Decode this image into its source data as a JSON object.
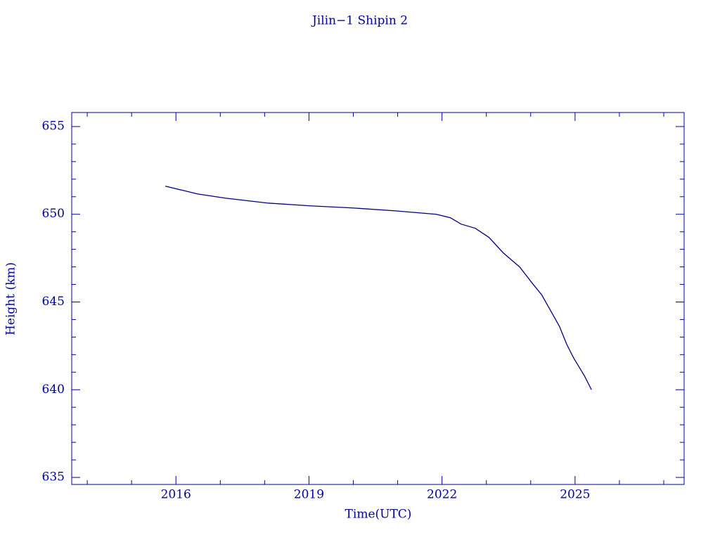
{
  "chart_data": {
    "type": "line",
    "title": "Jilin−1 Shipin 2",
    "x_label": "Time(UTC)",
    "y_label": "Height (km)",
    "color": "#000080",
    "xlim": [
      2013.65,
      2027.46
    ],
    "xticks": [
      2016,
      2019,
      2022,
      2025
    ],
    "xminorticks": [
      2014,
      2015,
      2017,
      2018,
      2020,
      2021,
      2023,
      2024,
      2026,
      2027
    ],
    "ylim": [
      634.6,
      655.8
    ],
    "yticks": [
      635,
      640,
      645,
      650,
      655
    ],
    "yminorticks": [
      636,
      637,
      638,
      639,
      641,
      642,
      643,
      644,
      646,
      647,
      648,
      649,
      651,
      652,
      653,
      654
    ],
    "x": [
      2015.76,
      2016.16,
      2016.48,
      2017.11,
      2018.06,
      2019.03,
      2019.98,
      2020.92,
      2021.87,
      2022.19,
      2022.43,
      2022.75,
      2023.06,
      2023.38,
      2023.75,
      2024.02,
      2024.25,
      2024.49,
      2024.65,
      2024.81,
      2024.97,
      2025.21,
      2025.37
    ],
    "values": [
      651.6,
      651.36,
      651.16,
      650.92,
      650.64,
      650.48,
      650.36,
      650.2,
      650.0,
      649.8,
      649.44,
      649.2,
      648.68,
      647.8,
      647.0,
      646.12,
      645.4,
      644.32,
      643.6,
      642.6,
      641.8,
      640.8,
      640.0
    ]
  }
}
